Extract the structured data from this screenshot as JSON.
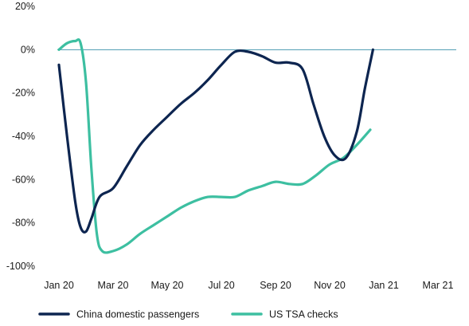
{
  "chart_data": {
    "type": "line",
    "x_labels": [
      "Jan 20",
      "Mar 20",
      "May 20",
      "Jul 20",
      "Sep 20",
      "Nov 20",
      "Jan 21",
      "Mar 21"
    ],
    "y_ticks": [
      20,
      0,
      -20,
      -40,
      -60,
      -80,
      -100
    ],
    "y_tick_labels": [
      "20%",
      "0%",
      "-20%",
      "-40%",
      "-60%",
      "-80%",
      "-100%"
    ],
    "ylim": [
      -100,
      20
    ],
    "zero_line": true,
    "grid": false,
    "legend_position": "bottom-left",
    "series": [
      {
        "name": "China domestic passengers",
        "color": "#0d2550",
        "points": [
          [
            0,
            -7
          ],
          [
            0.3,
            -40
          ],
          [
            0.6,
            -70
          ],
          [
            0.8,
            -82
          ],
          [
            1.0,
            -84
          ],
          [
            1.2,
            -78
          ],
          [
            1.5,
            -68
          ],
          [
            2.0,
            -64
          ],
          [
            2.5,
            -54
          ],
          [
            3.0,
            -44
          ],
          [
            3.5,
            -37
          ],
          [
            4.0,
            -31
          ],
          [
            4.5,
            -25
          ],
          [
            5.0,
            -20
          ],
          [
            5.5,
            -14
          ],
          [
            6.0,
            -7
          ],
          [
            6.5,
            -1
          ],
          [
            7.0,
            -1
          ],
          [
            7.5,
            -3
          ],
          [
            8.0,
            -6
          ],
          [
            8.5,
            -6
          ],
          [
            9.0,
            -9
          ],
          [
            9.4,
            -25
          ],
          [
            9.8,
            -40
          ],
          [
            10.2,
            -49
          ],
          [
            10.6,
            -50
          ],
          [
            11.0,
            -38
          ],
          [
            11.3,
            -18
          ],
          [
            11.6,
            0
          ]
        ]
      },
      {
        "name": "US TSA checks",
        "color": "#3dbfa1",
        "points": [
          [
            0,
            0
          ],
          [
            0.3,
            3
          ],
          [
            0.6,
            4
          ],
          [
            0.8,
            3
          ],
          [
            1.0,
            -15
          ],
          [
            1.2,
            -55
          ],
          [
            1.4,
            -85
          ],
          [
            1.6,
            -93
          ],
          [
            2.0,
            -93
          ],
          [
            2.5,
            -90
          ],
          [
            3.0,
            -85
          ],
          [
            3.5,
            -81
          ],
          [
            4.0,
            -77
          ],
          [
            4.5,
            -73
          ],
          [
            5.0,
            -70
          ],
          [
            5.5,
            -68
          ],
          [
            6.0,
            -68
          ],
          [
            6.5,
            -68
          ],
          [
            7.0,
            -65
          ],
          [
            7.5,
            -63
          ],
          [
            8.0,
            -61
          ],
          [
            8.5,
            -62
          ],
          [
            9.0,
            -62
          ],
          [
            9.5,
            -58
          ],
          [
            10.0,
            -53
          ],
          [
            10.5,
            -50
          ],
          [
            11.0,
            -44
          ],
          [
            11.5,
            -37
          ]
        ]
      }
    ]
  }
}
